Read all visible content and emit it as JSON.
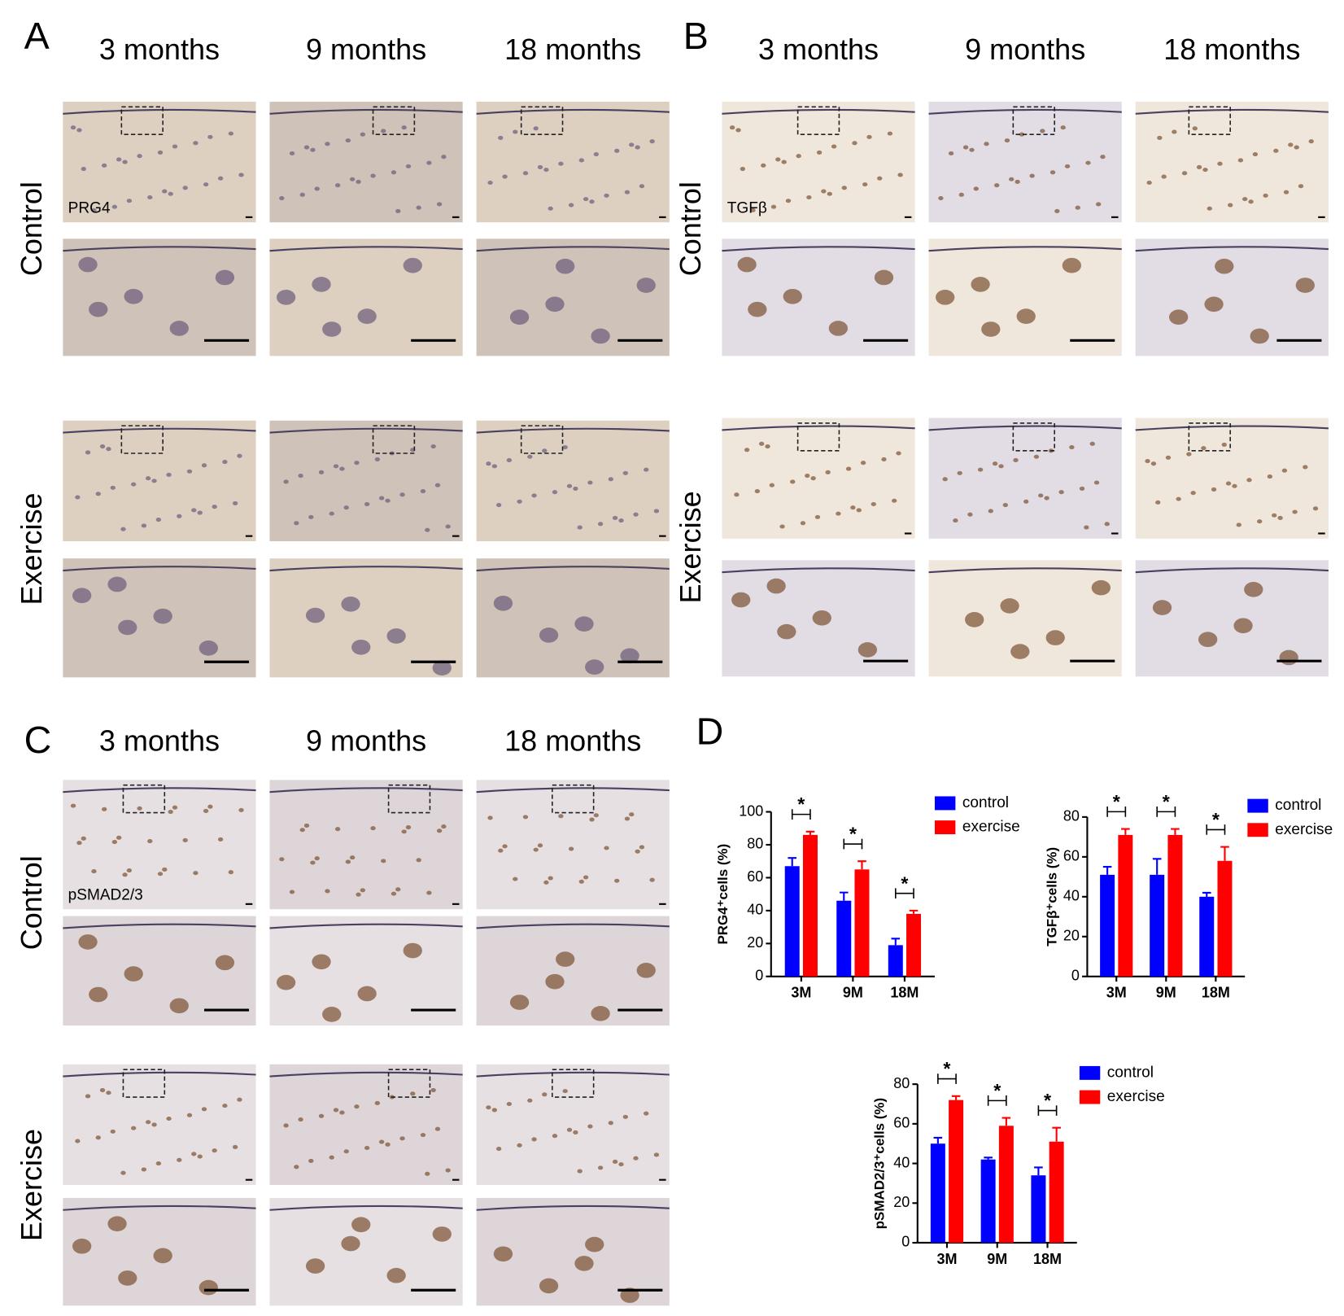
{
  "panels": [
    {
      "label": "A",
      "columns": [
        "3 months",
        "9 months",
        "18 months"
      ],
      "rows": [
        "Control",
        "Exercise"
      ],
      "stain": "PRG4"
    },
    {
      "label": "B",
      "columns": [
        "3 months",
        "9 months",
        "18 months"
      ],
      "rows": [
        "Control",
        "Exercise"
      ],
      "stain": "TGFβ"
    },
    {
      "label": "C",
      "columns": [
        "3 months",
        "9 months",
        "18 months"
      ],
      "rows": [
        "Control",
        "Exercise"
      ],
      "stain": "pSMAD2/3"
    }
  ],
  "chart_label": "D",
  "chart_data": [
    {
      "type": "bar",
      "ylabel": "PRG4⁺cells (%)",
      "categories": [
        "3M",
        "9M",
        "18M"
      ],
      "series": [
        {
          "name": "control",
          "color": "#0000ff",
          "values": [
            67,
            46,
            19
          ],
          "errors": [
            5,
            5,
            4
          ]
        },
        {
          "name": "exercise",
          "color": "#ff0000",
          "values": [
            86,
            65,
            38
          ],
          "errors": [
            2,
            5,
            2
          ]
        }
      ],
      "significance": [
        "*",
        "*",
        "*"
      ],
      "ylim": [
        0,
        100
      ],
      "yticks": [
        0,
        20,
        40,
        60,
        80,
        100
      ],
      "legend": "right"
    },
    {
      "type": "bar",
      "ylabel": "TGFβ⁺cells (%)",
      "categories": [
        "3M",
        "9M",
        "18M"
      ],
      "series": [
        {
          "name": "control",
          "color": "#0000ff",
          "values": [
            51,
            51,
            40
          ],
          "errors": [
            4,
            8,
            2
          ]
        },
        {
          "name": "exercise",
          "color": "#ff0000",
          "values": [
            71,
            71,
            58
          ],
          "errors": [
            3,
            3,
            7
          ]
        }
      ],
      "significance": [
        "*",
        "*",
        "*"
      ],
      "ylim": [
        0,
        80
      ],
      "yticks": [
        0,
        20,
        40,
        60,
        80
      ],
      "legend": "right"
    },
    {
      "type": "bar",
      "ylabel": "pSMAD2/3⁺cells (%)",
      "categories": [
        "3M",
        "9M",
        "18M"
      ],
      "series": [
        {
          "name": "control",
          "color": "#0000ff",
          "values": [
            50,
            42,
            34
          ],
          "errors": [
            3,
            1,
            4
          ]
        },
        {
          "name": "exercise",
          "color": "#ff0000",
          "values": [
            72,
            59,
            51
          ],
          "errors": [
            2,
            4,
            7
          ]
        }
      ],
      "significance": [
        "*",
        "*",
        "*"
      ],
      "ylim": [
        0,
        80
      ],
      "yticks": [
        0,
        20,
        40,
        60,
        80
      ],
      "legend": "right"
    }
  ]
}
